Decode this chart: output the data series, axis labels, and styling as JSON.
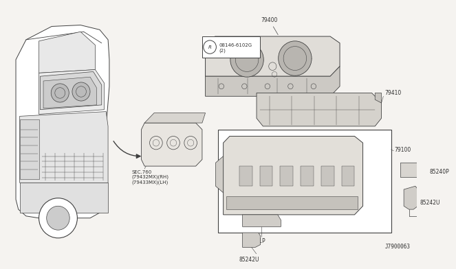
{
  "bg_color": "#f5f3f0",
  "line_color": "#404040",
  "text_color": "#303030",
  "diagram_id": "J7900063",
  "label_79400": "79400",
  "label_79410": "79410",
  "label_79100": "79100",
  "label_85240P": "85240P",
  "label_85241P": "85241P",
  "label_85242U_a": "85242U",
  "label_85242U_b": "85242U",
  "label_bolt": "08146-6102G\n(2)",
  "label_sec": "SEC.760\n(79432MX)(RH)\n(79433MX)(LH)",
  "fs_label": 5.5,
  "fs_small": 4.8,
  "lw_main": 0.6,
  "lw_thin": 0.35
}
